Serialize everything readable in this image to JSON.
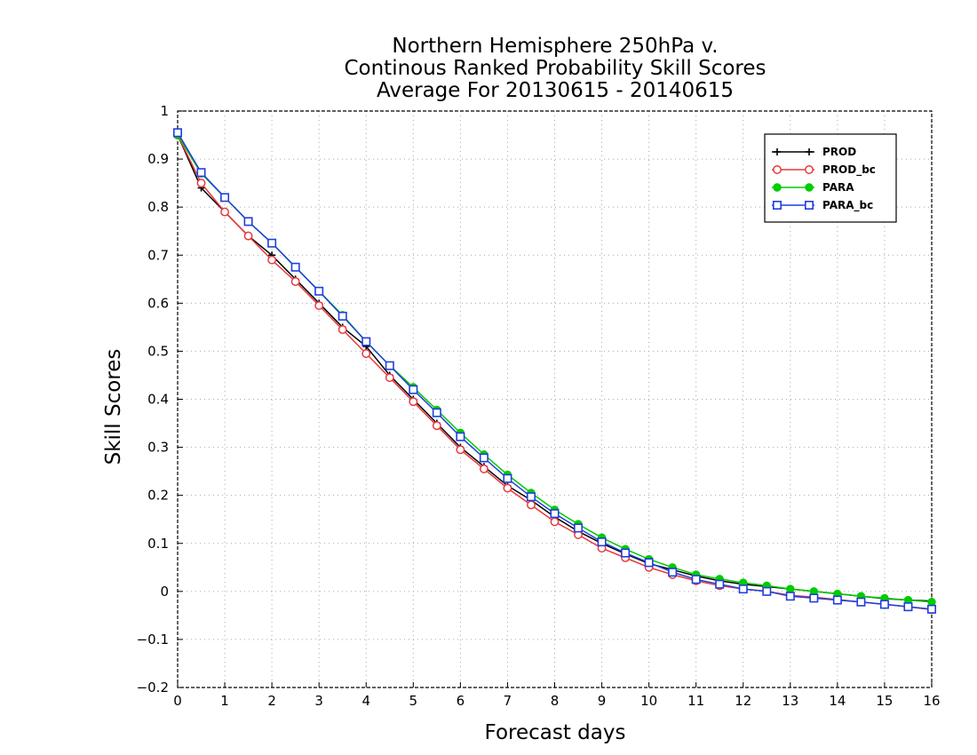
{
  "chart_data": {
    "type": "line",
    "title": [
      "Northern Hemisphere 250hPa v.",
      "Continous Ranked Probability Skill Scores",
      "Average For 20130615 - 20140615"
    ],
    "xlabel": "Forecast days",
    "ylabel": "Skill Scores",
    "xlim": [
      0,
      16
    ],
    "ylim": [
      -0.2,
      1
    ],
    "xticks": [
      0,
      1,
      2,
      3,
      4,
      5,
      6,
      7,
      8,
      9,
      10,
      11,
      12,
      13,
      14,
      15,
      16
    ],
    "yticks": [
      -0.2,
      -0.1,
      0,
      0.1,
      0.2,
      0.3,
      0.4,
      0.5,
      0.6,
      0.7,
      0.8,
      0.9,
      1
    ],
    "ytick_labels": [
      "−0.2",
      "−0.1",
      "0",
      "0.1",
      "0.2",
      "0.3",
      "0.4",
      "0.5",
      "0.6",
      "0.7",
      "0.8",
      "0.9",
      "1"
    ],
    "grid": true,
    "legend_position": "top-right",
    "x": [
      0,
      0.5,
      1,
      1.5,
      2,
      2.5,
      3,
      3.5,
      4,
      4.5,
      5,
      5.5,
      6,
      6.5,
      7,
      7.5,
      8,
      8.5,
      9,
      9.5,
      10,
      10.5,
      11,
      11.5,
      12,
      12.5,
      13,
      13.5,
      14,
      14.5,
      15,
      15.5,
      16
    ],
    "series": [
      {
        "name": "PROD",
        "color": "#000000",
        "marker": "plus",
        "values": [
          0.95,
          0.84,
          0.79,
          0.74,
          0.7,
          0.65,
          0.6,
          0.55,
          0.51,
          0.45,
          0.4,
          0.35,
          0.3,
          0.26,
          0.22,
          0.19,
          0.155,
          0.125,
          0.1,
          0.078,
          0.058,
          0.045,
          0.032,
          0.022,
          0.015,
          0.01,
          0.005,
          0.0,
          -0.005,
          -0.01,
          -0.015,
          -0.018,
          -0.02
        ]
      },
      {
        "name": "PROD_bc",
        "color": "#e8383c",
        "marker": "circle-open",
        "values": [
          0.95,
          0.85,
          0.79,
          0.74,
          0.69,
          0.645,
          0.595,
          0.545,
          0.495,
          0.445,
          0.395,
          0.345,
          0.295,
          0.255,
          0.215,
          0.18,
          0.145,
          0.118,
          0.09,
          0.07,
          0.05,
          0.035,
          0.022,
          0.012,
          0.005,
          0.0,
          -0.008,
          -0.012,
          -0.017,
          -0.022,
          -0.027,
          -0.032,
          -0.038
        ]
      },
      {
        "name": "PARA",
        "color": "#00cc00",
        "marker": "circle-filled",
        "values": [
          0.95,
          0.87,
          0.82,
          0.77,
          0.725,
          0.675,
          0.625,
          0.575,
          0.52,
          0.47,
          0.425,
          0.378,
          0.33,
          0.285,
          0.243,
          0.205,
          0.17,
          0.14,
          0.112,
          0.088,
          0.067,
          0.05,
          0.035,
          0.026,
          0.018,
          0.012,
          0.005,
          0.0,
          -0.005,
          -0.01,
          -0.014,
          -0.018,
          -0.022
        ]
      },
      {
        "name": "PARA_bc",
        "color": "#1f3fdc",
        "marker": "square-open",
        "values": [
          0.955,
          0.872,
          0.82,
          0.77,
          0.725,
          0.675,
          0.625,
          0.573,
          0.52,
          0.47,
          0.42,
          0.372,
          0.322,
          0.278,
          0.235,
          0.197,
          0.162,
          0.132,
          0.103,
          0.08,
          0.06,
          0.04,
          0.025,
          0.015,
          0.005,
          0.0,
          -0.01,
          -0.014,
          -0.018,
          -0.022,
          -0.027,
          -0.032,
          -0.037
        ]
      }
    ]
  }
}
